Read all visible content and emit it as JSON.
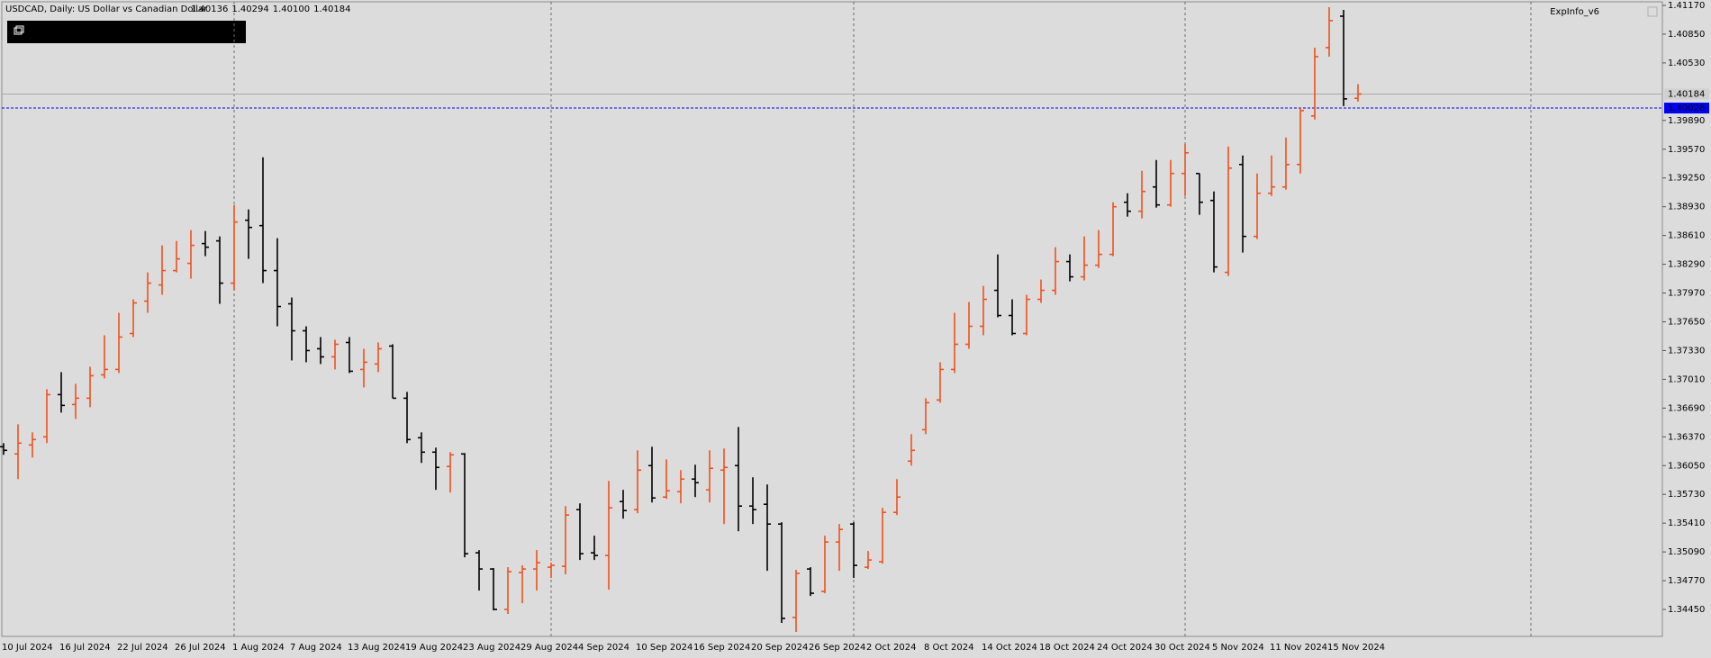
{
  "chart_data": {
    "type": "ohlc",
    "title": "USDCAD, Daily:  US Dollar vs Canadian Dollar",
    "last_bar_labels": [
      "1.40136",
      "1.40294",
      "1.40100",
      "1.40184"
    ],
    "indicator_label": "ExpInfo_v6",
    "up_color": "#f0501e",
    "down_color": "#000000",
    "level": 1.40028,
    "level_color": "#0000ff",
    "categories": [
      "10 Jul 2024",
      null,
      null,
      null,
      "16 Jul 2024",
      null,
      null,
      null,
      "22 Jul 2024",
      null,
      null,
      null,
      "26 Jul 2024",
      null,
      null,
      null,
      "1 Aug 2024",
      null,
      null,
      null,
      "7 Aug 2024",
      null,
      null,
      null,
      "13 Aug 2024",
      null,
      null,
      null,
      "19 Aug 2024",
      null,
      null,
      null,
      "23 Aug 2024",
      null,
      null,
      null,
      "29 Aug 2024",
      null,
      null,
      null,
      "4 Sep 2024",
      null,
      null,
      null,
      "10 Sep 2024",
      null,
      null,
      null,
      "16 Sep 2024",
      null,
      null,
      null,
      "20 Sep 2024",
      null,
      null,
      null,
      "26 Sep 2024",
      null,
      null,
      null,
      "2 Oct 2024",
      null,
      null,
      null,
      "8 Oct 2024",
      null,
      null,
      null,
      "14 Oct 2024",
      null,
      null,
      null,
      "18 Oct 2024",
      null,
      null,
      null,
      "24 Oct 2024",
      null,
      null,
      null,
      "30 Oct 2024",
      null,
      null,
      null,
      "5 Nov 2024",
      null,
      null,
      null,
      "11 Nov 2024",
      null,
      null,
      null,
      "15 Nov 2024",
      null,
      null
    ],
    "open": [
      1.3626,
      1.3618,
      1.3628,
      1.3637,
      1.3684,
      1.3673,
      1.368,
      1.3706,
      1.3712,
      1.3752,
      1.3788,
      1.3806,
      1.3822,
      1.383,
      1.3852,
      1.3855,
      1.3808,
      1.3878,
      1.3872,
      1.3822,
      1.3785,
      1.3755,
      1.3735,
      1.3726,
      1.3742,
      1.3712,
      1.3718,
      1.3738,
      1.368,
      1.3636,
      1.362,
      1.3604,
      1.3618,
      1.3508,
      1.349,
      1.3445,
      1.3486,
      1.349,
      1.3492,
      1.3493,
      1.3556,
      1.3508,
      1.3505,
      1.3565,
      1.3556,
      1.3605,
      1.357,
      1.3576,
      1.359,
      1.3578,
      1.36,
      1.3605,
      1.356,
      1.3562,
      1.354,
      1.3436,
      1.349,
      1.3465,
      1.352,
      1.354,
      1.3492,
      1.3498,
      1.3553,
      1.361,
      1.3645,
      1.3678,
      1.3712,
      1.374,
      1.376,
      1.38,
      1.3772,
      1.3752,
      1.379,
      1.38,
      1.3832,
      1.3815,
      1.3828,
      1.384,
      1.3898,
      1.3888,
      1.3915,
      1.3895,
      1.393,
      1.393,
      1.39,
      1.382,
      1.394,
      1.386,
      1.3908,
      1.3915,
      1.394,
      1.3994,
      1.407,
      1.4105,
      1.40136
    ],
    "high": [
      1.363,
      1.3651,
      1.3642,
      1.369,
      1.3709,
      1.3696,
      1.3715,
      1.375,
      1.3775,
      1.379,
      1.382,
      1.385,
      1.3855,
      1.3867,
      1.3866,
      1.386,
      1.3895,
      1.389,
      1.3948,
      1.3858,
      1.3792,
      1.376,
      1.3748,
      1.3745,
      1.3748,
      1.3735,
      1.3742,
      1.374,
      1.3687,
      1.3642,
      1.3625,
      1.362,
      1.3619,
      1.3511,
      1.3491,
      1.3492,
      1.3494,
      1.3511,
      1.3497,
      1.356,
      1.3563,
      1.3527,
      1.3588,
      1.3578,
      1.3622,
      1.3626,
      1.3612,
      1.36,
      1.3606,
      1.3622,
      1.3624,
      1.3648,
      1.3592,
      1.3584,
      1.3542,
      1.3489,
      1.3492,
      1.3527,
      1.354,
      1.3542,
      1.351,
      1.3558,
      1.359,
      1.364,
      1.368,
      1.372,
      1.3775,
      1.3787,
      1.3805,
      1.384,
      1.379,
      1.3795,
      1.3812,
      1.3848,
      1.384,
      1.386,
      1.3867,
      1.3898,
      1.3908,
      1.3933,
      1.3945,
      1.3945,
      1.3963,
      1.393,
      1.391,
      1.396,
      1.395,
      1.393,
      1.395,
      1.397,
      1.4003,
      1.407,
      1.4115,
      1.4112,
      1.40294
    ],
    "low": [
      1.3617,
      1.359,
      1.3614,
      1.363,
      1.3664,
      1.3657,
      1.367,
      1.3702,
      1.3708,
      1.3748,
      1.3775,
      1.3795,
      1.382,
      1.3813,
      1.3838,
      1.3785,
      1.38,
      1.3835,
      1.3808,
      1.376,
      1.3722,
      1.372,
      1.3718,
      1.3712,
      1.3708,
      1.3692,
      1.3709,
      1.368,
      1.363,
      1.3608,
      1.3578,
      1.3575,
      1.3503,
      1.3466,
      1.3444,
      1.344,
      1.3452,
      1.3466,
      1.348,
      1.3484,
      1.35,
      1.35,
      1.3467,
      1.3546,
      1.3552,
      1.3564,
      1.3568,
      1.3563,
      1.357,
      1.3564,
      1.354,
      1.3532,
      1.354,
      1.3488,
      1.343,
      1.342,
      1.346,
      1.3463,
      1.3488,
      1.348,
      1.349,
      1.3496,
      1.355,
      1.3605,
      1.364,
      1.3675,
      1.3708,
      1.3735,
      1.375,
      1.377,
      1.375,
      1.375,
      1.3786,
      1.3795,
      1.381,
      1.3811,
      1.3825,
      1.3838,
      1.3882,
      1.388,
      1.3892,
      1.3893,
      1.3905,
      1.3884,
      1.382,
      1.3816,
      1.3842,
      1.3857,
      1.3905,
      1.3912,
      1.393,
      1.399,
      1.406,
      1.4005,
      1.401
    ],
    "close": [
      1.3622,
      1.363,
      1.3634,
      1.3684,
      1.3672,
      1.368,
      1.3705,
      1.3712,
      1.3748,
      1.3786,
      1.3808,
      1.3822,
      1.3835,
      1.385,
      1.3848,
      1.3808,
      1.3876,
      1.387,
      1.3822,
      1.3782,
      1.3755,
      1.3733,
      1.3726,
      1.374,
      1.371,
      1.372,
      1.3735,
      1.368,
      1.3634,
      1.362,
      1.3603,
      1.3617,
      1.3507,
      1.349,
      1.3445,
      1.3487,
      1.349,
      1.3497,
      1.3494,
      1.355,
      1.3507,
      1.3505,
      1.3558,
      1.3555,
      1.36,
      1.3569,
      1.3577,
      1.359,
      1.3586,
      1.3602,
      1.3603,
      1.356,
      1.3556,
      1.354,
      1.3435,
      1.3485,
      1.3463,
      1.352,
      1.3534,
      1.3494,
      1.35,
      1.3553,
      1.357,
      1.3622,
      1.3675,
      1.3712,
      1.374,
      1.376,
      1.379,
      1.3772,
      1.3752,
      1.379,
      1.38,
      1.3832,
      1.3815,
      1.3828,
      1.384,
      1.3893,
      1.3888,
      1.391,
      1.3895,
      1.393,
      1.3953,
      1.3898,
      1.3826,
      1.3936,
      1.386,
      1.3908,
      1.3915,
      1.394,
      1.4,
      1.406,
      1.41,
      1.4013,
      1.40184
    ],
    "ylim": [
      1.3415,
      1.4121
    ],
    "yticks": [
      {
        "value": 1.3445,
        "label": "1.34450"
      },
      {
        "value": 1.3477,
        "label": "1.34770"
      },
      {
        "value": 1.3509,
        "label": "1.35090"
      },
      {
        "value": 1.3541,
        "label": "1.35410"
      },
      {
        "value": 1.3573,
        "label": "1.35730"
      },
      {
        "value": 1.3605,
        "label": "1.36050"
      },
      {
        "value": 1.3637,
        "label": "1.36370"
      },
      {
        "value": 1.3669,
        "label": "1.36690"
      },
      {
        "value": 1.3701,
        "label": "1.37010"
      },
      {
        "value": 1.3733,
        "label": "1.37330"
      },
      {
        "value": 1.3765,
        "label": "1.37650"
      },
      {
        "value": 1.3797,
        "label": "1.37970"
      },
      {
        "value": 1.3829,
        "label": "1.38290"
      },
      {
        "value": 1.3861,
        "label": "1.38610"
      },
      {
        "value": 1.3893,
        "label": "1.38930"
      },
      {
        "value": 1.3925,
        "label": "1.39250"
      },
      {
        "value": 1.3957,
        "label": "1.39570"
      },
      {
        "value": 1.3989,
        "label": "1.39890"
      },
      {
        "value": 1.4053,
        "label": "1.40530"
      },
      {
        "value": 1.4085,
        "label": "1.40850"
      },
      {
        "value": 1.4117,
        "label": "1.41170"
      }
    ]
  }
}
